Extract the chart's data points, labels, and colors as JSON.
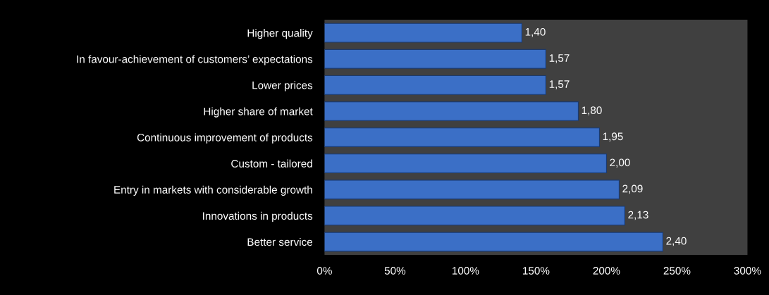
{
  "chart_data": {
    "type": "bar",
    "orientation": "horizontal",
    "categories": [
      "Higher quality",
      "In favour-achievement of customers’ expectations",
      "Lower prices",
      "Higher share of market",
      "Continuous improvement of products",
      "Custom - tailored",
      "Entry in markets with considerable growth",
      "Innovations in products",
      "Better service"
    ],
    "values": [
      1.4,
      1.57,
      1.57,
      1.8,
      1.95,
      2.0,
      2.09,
      2.13,
      2.4
    ],
    "value_labels": [
      "1,40",
      "1,57",
      "1,57",
      "1,80",
      "1,95",
      "2,00",
      "2,09",
      "2,13",
      "2,40"
    ],
    "color": "#3b6fc6",
    "xlim": [
      0,
      3
    ],
    "xticks": [
      {
        "value": 0,
        "label": "0%"
      },
      {
        "value": 0.5,
        "label": "50%"
      },
      {
        "value": 1,
        "label": "100%"
      },
      {
        "value": 1.5,
        "label": "150%"
      },
      {
        "value": 2,
        "label": "200%"
      },
      {
        "value": 2.5,
        "label": "250%"
      },
      {
        "value": 3,
        "label": "300%"
      }
    ],
    "grid": false,
    "legend": false
  }
}
